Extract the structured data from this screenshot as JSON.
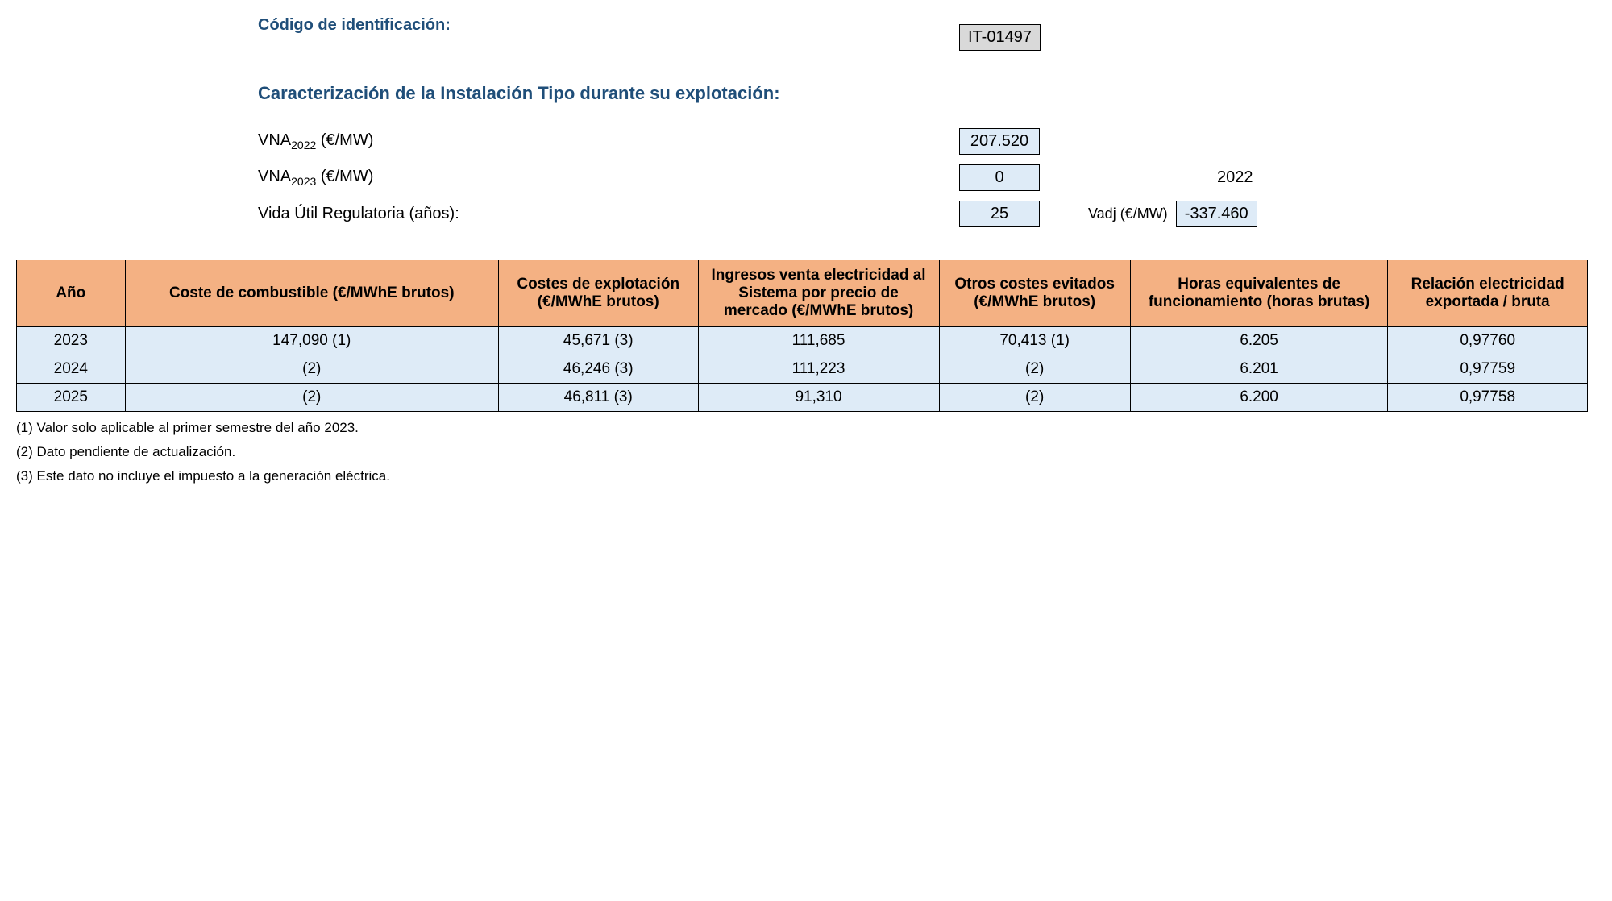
{
  "header": {
    "id_label": "Código de identificación:",
    "id_value": "IT-01497",
    "section_title": "Caracterización de la Instalación Tipo durante su explotación:"
  },
  "params": {
    "vna2022_label_prefix": "VNA",
    "vna2022_sub": "2022",
    "vna2022_unit": " (€/MW)",
    "vna2022_value": "207.520",
    "vna2023_label_prefix": "VNA",
    "vna2023_sub": "2023",
    "vna2023_unit": " (€/MW)",
    "vna2023_value": "0",
    "extra_year": "2022",
    "vida_label": "Vida Útil Regulatoria (años):",
    "vida_value": "25",
    "vadj_label": "Vadj (€/MW)",
    "vadj_value": "-337.460"
  },
  "table": {
    "columns": [
      "Año",
      "Coste de combustible (€/MWhE brutos)",
      "Costes de explotación (€/MWhE brutos)",
      "Ingresos venta electricidad al Sistema por precio de mercado (€/MWhE brutos)",
      "Otros costes evitados (€/MWhE brutos)",
      "Horas equivalentes de funcionamiento (horas brutas)",
      "Relación electricidad exportada / bruta"
    ],
    "rows": [
      [
        "2023",
        "147,090 (1)",
        "45,671 (3)",
        "111,685",
        "70,413 (1)",
        "6.205",
        "0,97760"
      ],
      [
        "2024",
        "(2)",
        "46,246 (3)",
        "111,223",
        "(2)",
        "6.201",
        "0,97759"
      ],
      [
        "2025",
        "(2)",
        "46,811 (3)",
        "91,310",
        "(2)",
        "6.200",
        "0,97758"
      ]
    ],
    "col_widths": [
      "col0",
      "col1",
      "col2",
      "col3",
      "col4",
      "col5",
      "col6"
    ],
    "header_bg": "#f4b183",
    "row_bg": "#deebf7"
  },
  "footnotes": [
    "(1) Valor solo aplicable al primer semestre del año 2023.",
    "(2) Dato pendiente de actualización.",
    "(3) Este dato no incluye el impuesto a la generación eléctrica."
  ]
}
